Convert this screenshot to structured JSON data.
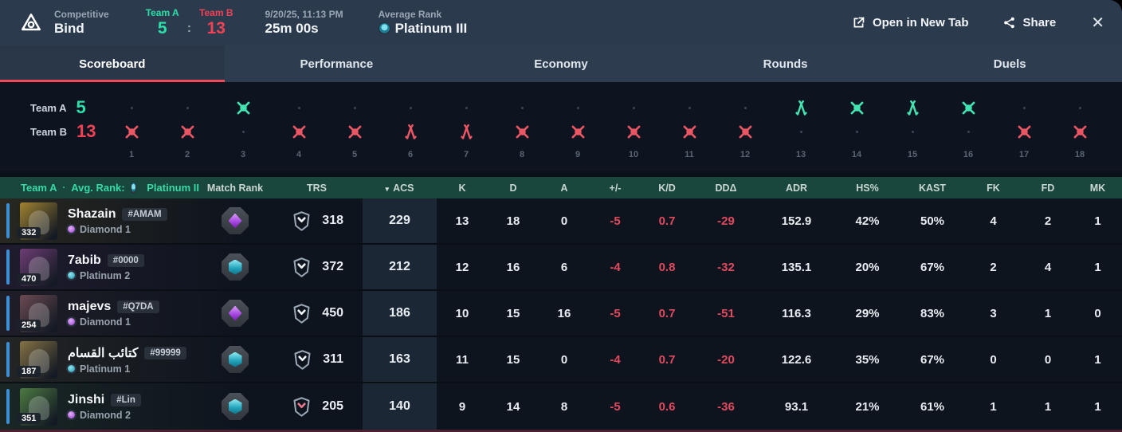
{
  "header": {
    "mode": "Competitive",
    "map": "Bind",
    "team_a_label": "Team A",
    "team_a_score": "5",
    "score_separator": ":",
    "team_b_label": "Team B",
    "team_b_score": "13",
    "date": "9/20/25, 11:13 PM",
    "duration": "25m 00s",
    "avg_rank_label": "Average Rank",
    "avg_rank": "Platinum III",
    "open_in_new_tab_label": "Open in New Tab",
    "share_label": "Share",
    "close_label": "✕"
  },
  "tabs": [
    {
      "label": "Scoreboard",
      "active": true
    },
    {
      "label": "Performance",
      "active": false
    },
    {
      "label": "Economy",
      "active": false
    },
    {
      "label": "Rounds",
      "active": false
    },
    {
      "label": "Duels",
      "active": false
    }
  ],
  "timeline": {
    "team_a": {
      "label": "Team A",
      "score": "5"
    },
    "team_b": {
      "label": "Team B",
      "score": "13"
    },
    "rounds": [
      {
        "n": "1",
        "winner": "B",
        "icon": "elimination"
      },
      {
        "n": "2",
        "winner": "B",
        "icon": "elimination"
      },
      {
        "n": "3",
        "winner": "A",
        "icon": "elimination"
      },
      {
        "n": "4",
        "winner": "B",
        "icon": "elimination"
      },
      {
        "n": "5",
        "winner": "B",
        "icon": "elimination"
      },
      {
        "n": "6",
        "winner": "B",
        "icon": "defuse"
      },
      {
        "n": "7",
        "winner": "B",
        "icon": "defuse"
      },
      {
        "n": "8",
        "winner": "B",
        "icon": "elimination"
      },
      {
        "n": "9",
        "winner": "B",
        "icon": "elimination"
      },
      {
        "n": "10",
        "winner": "B",
        "icon": "elimination"
      },
      {
        "n": "11",
        "winner": "B",
        "icon": "elimination"
      },
      {
        "n": "12",
        "winner": "B",
        "icon": "elimination"
      },
      {
        "n": "13",
        "winner": "A",
        "icon": "defuse"
      },
      {
        "n": "14",
        "winner": "A",
        "icon": "elimination"
      },
      {
        "n": "15",
        "winner": "A",
        "icon": "defuse"
      },
      {
        "n": "16",
        "winner": "A",
        "icon": "elimination"
      },
      {
        "n": "17",
        "winner": "B",
        "icon": "elimination"
      },
      {
        "n": "18",
        "winner": "B",
        "icon": "elimination"
      }
    ]
  },
  "table": {
    "team_label": "Team A",
    "separator": "·",
    "avg_rank_prefix": "Avg. Rank:",
    "avg_rank": "Platinum II",
    "sort_indicator": "▾",
    "sorted_column": "ACS",
    "columns": [
      "Match Rank",
      "TRS",
      "ACS",
      "K",
      "D",
      "A",
      "+/-",
      "K/D",
      "DDΔ",
      "ADR",
      "HS%",
      "KAST",
      "FK",
      "FD",
      "MK"
    ],
    "players": [
      {
        "name": "Shazain",
        "tag": "#AMAM",
        "level": "332",
        "rank": "Diamond 1",
        "rank_tier": "diamond",
        "match_rank": "diamond",
        "trs_badge": "gray",
        "trs": "318",
        "acs": "229",
        "k": "13",
        "d": "18",
        "a": "0",
        "pm": "-5",
        "kd": "0.7",
        "dd": "-29",
        "adr": "152.9",
        "hs": "42%",
        "kast": "50%",
        "fk": "4",
        "fd": "2",
        "mk": "1",
        "avatar_color": "#a08230"
      },
      {
        "name": "7abib",
        "tag": "#0000",
        "level": "470",
        "rank": "Platinum 2",
        "rank_tier": "platinum",
        "match_rank": "platinum",
        "trs_badge": "gray",
        "trs": "372",
        "acs": "212",
        "k": "12",
        "d": "16",
        "a": "6",
        "pm": "-4",
        "kd": "0.8",
        "dd": "-32",
        "adr": "135.1",
        "hs": "20%",
        "kast": "67%",
        "fk": "2",
        "fd": "4",
        "mk": "1",
        "avatar_color": "#6e3d74"
      },
      {
        "name": "majevs",
        "tag": "#Q7DA",
        "level": "254",
        "rank": "Diamond 1",
        "rank_tier": "diamond",
        "match_rank": "diamond",
        "trs_badge": "gray",
        "trs": "450",
        "acs": "186",
        "k": "10",
        "d": "15",
        "a": "16",
        "pm": "-5",
        "kd": "0.7",
        "dd": "-51",
        "adr": "116.3",
        "hs": "29%",
        "kast": "83%",
        "fk": "3",
        "fd": "1",
        "mk": "0",
        "avatar_color": "#6b4a52"
      },
      {
        "name": "كتائب القسام",
        "tag": "#99999",
        "level": "187",
        "rank": "Platinum 1",
        "rank_tier": "platinum",
        "match_rank": "platinum",
        "trs_badge": "gray",
        "trs": "311",
        "acs": "163",
        "k": "11",
        "d": "15",
        "a": "0",
        "pm": "-4",
        "kd": "0.7",
        "dd": "-20",
        "adr": "122.6",
        "hs": "35%",
        "kast": "67%",
        "fk": "0",
        "fd": "0",
        "mk": "1",
        "avatar_color": "#857245"
      },
      {
        "name": "Jinshi",
        "tag": "#Lin",
        "level": "351",
        "rank": "Diamond 2",
        "rank_tier": "diamond",
        "match_rank": "platinum",
        "trs_badge": "pink",
        "trs": "205",
        "acs": "140",
        "k": "9",
        "d": "14",
        "a": "8",
        "pm": "-5",
        "kd": "0.6",
        "dd": "-36",
        "adr": "93.1",
        "hs": "21%",
        "kast": "61%",
        "fk": "1",
        "fd": "1",
        "mk": "1",
        "avatar_color": "#4c7a42"
      }
    ]
  },
  "colors": {
    "team_a_green": "#2be0a8",
    "team_b_red": "#f04254",
    "tab_underline_red": "#f24a5a",
    "table_header_green_bg": "#1a473d",
    "table_header_text_green": "#35d9a6",
    "acs_column_highlight": "#1c2735",
    "negative_stat_red": "#e04a5f",
    "header_bar_bg": "#2c3a4e",
    "timeline_bg": "#0d1420",
    "row_accent_blue": "#3d8fd6",
    "bottom_strip_maroon": "#4a2130"
  }
}
